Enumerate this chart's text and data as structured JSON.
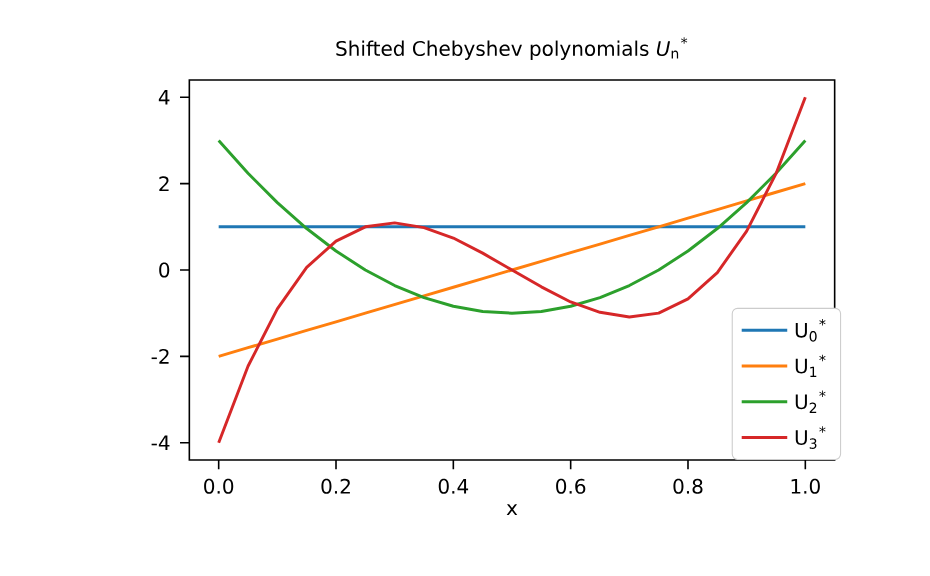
{
  "chart_data": {
    "type": "line",
    "title": "Shifted Chebyshev polynomials *U*$_{n}$$^{*}$",
    "xlabel": "x",
    "x": [
      0,
      0.05,
      0.1,
      0.15,
      0.2,
      0.25,
      0.3,
      0.35,
      0.4,
      0.45,
      0.5,
      0.55,
      0.6,
      0.65,
      0.7,
      0.75,
      0.8,
      0.85,
      0.9,
      0.95,
      1
    ],
    "series": [
      {
        "name": "U$_{0}$$^{*}$",
        "color": "#1f77b4",
        "values": [
          1,
          1,
          1,
          1,
          1,
          1,
          1,
          1,
          1,
          1,
          1,
          1,
          1,
          1,
          1,
          1,
          1,
          1,
          1,
          1,
          1
        ]
      },
      {
        "name": "U$_{1}$$^{*}$",
        "color": "#ff7f0e",
        "values": [
          -2,
          -1.8,
          -1.6,
          -1.4,
          -1.2,
          -1,
          -0.8,
          -0.6,
          -0.4,
          -0.2,
          0,
          0.2,
          0.4,
          0.6,
          0.8,
          1,
          1.2,
          1.4,
          1.6,
          1.8,
          2
        ]
      },
      {
        "name": "U$_{2}$$^{*}$",
        "color": "#2ca02c",
        "values": [
          3,
          2.24,
          1.56,
          0.96,
          0.44,
          0,
          -0.36,
          -0.64,
          -0.84,
          -0.96,
          -1,
          -0.96,
          -0.84,
          -0.64,
          -0.36,
          0,
          0.44,
          0.96,
          1.56,
          2.24,
          3
        ]
      },
      {
        "name": "U$_{3}$$^{*}$",
        "color": "#d62728",
        "values": [
          -4,
          -2.23,
          -0.9,
          0.06,
          0.67,
          1,
          1.09,
          0.98,
          0.74,
          0.39,
          0,
          -0.39,
          -0.74,
          -0.98,
          -1.09,
          -1,
          -0.67,
          -0.06,
          0.9,
          2.23,
          4
        ]
      }
    ],
    "xlim": [
      -0.05,
      1.05
    ],
    "ylim": [
      -4.4,
      4.4
    ],
    "xticks": [
      {
        "value": 0,
        "label": "0.0"
      },
      0.2,
      0.4,
      0.6,
      0.8,
      {
        "value": 1,
        "label": "1.0"
      }
    ],
    "yticks": [
      -4,
      -2,
      0,
      2,
      4
    ],
    "legend": "bottom right"
  }
}
